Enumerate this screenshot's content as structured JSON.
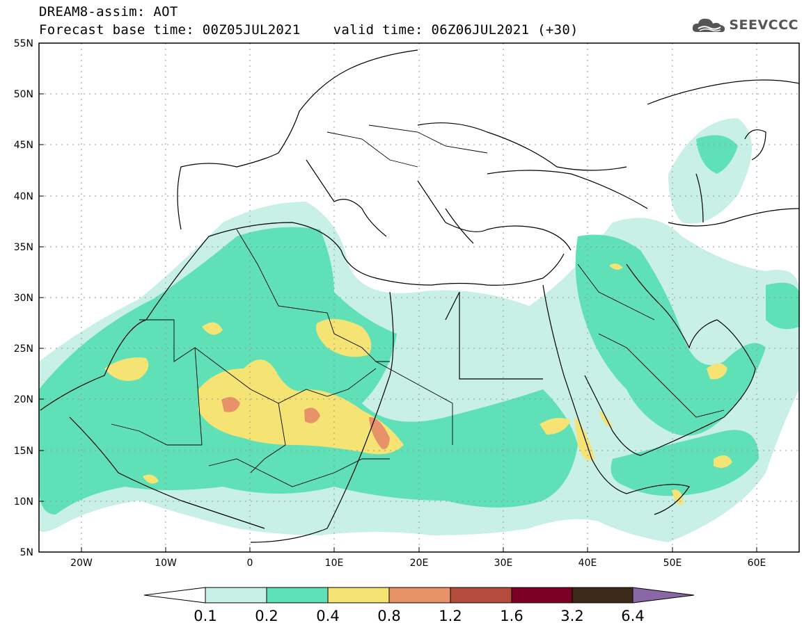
{
  "header": {
    "line1": "DREAM8-assim: AOT",
    "line2_base": "Forecast base time: 00Z05JUL2021",
    "line2_valid": "valid time: 06Z06JUL2021 (+30)"
  },
  "logo": {
    "text": "SEEVCCC",
    "icon": "cloud-icon"
  },
  "map": {
    "lon_range": [
      -25,
      65
    ],
    "lat_range": [
      5,
      55
    ],
    "lon_ticks": [
      {
        "value": -20,
        "label": "20W"
      },
      {
        "value": -10,
        "label": "10W"
      },
      {
        "value": 0,
        "label": "0"
      },
      {
        "value": 10,
        "label": "10E"
      },
      {
        "value": 20,
        "label": "20E"
      },
      {
        "value": 30,
        "label": "30E"
      },
      {
        "value": 40,
        "label": "40E"
      },
      {
        "value": 50,
        "label": "50E"
      },
      {
        "value": 60,
        "label": "60E"
      }
    ],
    "lat_ticks": [
      {
        "value": 55,
        "label": "55N"
      },
      {
        "value": 50,
        "label": "50N"
      },
      {
        "value": 45,
        "label": "45N"
      },
      {
        "value": 40,
        "label": "40N"
      },
      {
        "value": 35,
        "label": "35N"
      },
      {
        "value": 30,
        "label": "30N"
      },
      {
        "value": 25,
        "label": "25N"
      },
      {
        "value": 20,
        "label": "20N"
      },
      {
        "value": 15,
        "label": "15N"
      },
      {
        "value": 10,
        "label": "10N"
      },
      {
        "value": 5,
        "label": "5N"
      }
    ],
    "grid": "dotted"
  },
  "colorbar": {
    "labels": [
      "0.1",
      "0.2",
      "0.4",
      "0.8",
      "1.2",
      "1.6",
      "3.2",
      "6.4"
    ],
    "colors": [
      "#ffffff",
      "#c8f0e6",
      "#5fe0b7",
      "#f5e373",
      "#e8926a",
      "#b44b3c",
      "#7a0026",
      "#3e2a18",
      "#8a68a8"
    ]
  }
}
